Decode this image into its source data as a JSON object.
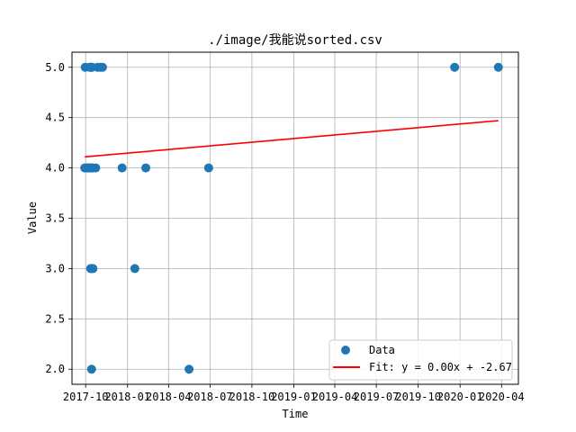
{
  "chart_data": {
    "type": "scatter",
    "title": "./image/我能说sorted.csv",
    "xlabel": "Time",
    "ylabel": "Value",
    "x_is_date": true,
    "xlim": [
      "2017-09-01",
      "2020-05-08"
    ],
    "ylim": [
      1.85,
      5.15
    ],
    "grid": true,
    "legend_position": "lower-right",
    "x_ticks": [
      {
        "date": "2017-10-01",
        "label": "2017-10"
      },
      {
        "date": "2018-01-01",
        "label": "2018-01"
      },
      {
        "date": "2018-04-01",
        "label": "2018-04"
      },
      {
        "date": "2018-07-01",
        "label": "2018-07"
      },
      {
        "date": "2018-10-01",
        "label": "2018-10"
      },
      {
        "date": "2019-01-01",
        "label": "2019-01"
      },
      {
        "date": "2019-04-01",
        "label": "2019-04"
      },
      {
        "date": "2019-07-01",
        "label": "2019-07"
      },
      {
        "date": "2019-10-01",
        "label": "2019-10"
      },
      {
        "date": "2020-01-01",
        "label": "2020-01"
      },
      {
        "date": "2020-04-01",
        "label": "2020-04"
      }
    ],
    "y_ticks": [
      {
        "value": 2.0,
        "label": "2.0"
      },
      {
        "value": 2.5,
        "label": "2.5"
      },
      {
        "value": 3.0,
        "label": "3.0"
      },
      {
        "value": 3.5,
        "label": "3.5"
      },
      {
        "value": 4.0,
        "label": "4.0"
      },
      {
        "value": 4.5,
        "label": "4.5"
      },
      {
        "value": 5.0,
        "label": "5.0"
      }
    ],
    "series": [
      {
        "name": "Data",
        "kind": "scatter",
        "color": "#1f77b4",
        "points": [
          {
            "x": "2017-09-30",
            "y": 5.0
          },
          {
            "x": "2017-10-10",
            "y": 5.0
          },
          {
            "x": "2017-10-12",
            "y": 5.0
          },
          {
            "x": "2017-10-13",
            "y": 5.0
          },
          {
            "x": "2017-10-15",
            "y": 5.0
          },
          {
            "x": "2017-10-27",
            "y": 5.0
          },
          {
            "x": "2017-11-02",
            "y": 5.0
          },
          {
            "x": "2017-11-07",
            "y": 5.0
          },
          {
            "x": "2017-09-29",
            "y": 4.0
          },
          {
            "x": "2017-10-03",
            "y": 4.0
          },
          {
            "x": "2017-10-05",
            "y": 4.0
          },
          {
            "x": "2017-10-07",
            "y": 4.0
          },
          {
            "x": "2017-10-09",
            "y": 4.0
          },
          {
            "x": "2017-10-11",
            "y": 4.0
          },
          {
            "x": "2017-10-13",
            "y": 4.0
          },
          {
            "x": "2017-10-15",
            "y": 4.0
          },
          {
            "x": "2017-10-17",
            "y": 4.0
          },
          {
            "x": "2017-10-23",
            "y": 4.0
          },
          {
            "x": "2017-12-20",
            "y": 4.0
          },
          {
            "x": "2018-02-10",
            "y": 4.0
          },
          {
            "x": "2018-06-28",
            "y": 4.0
          },
          {
            "x": "2017-10-12",
            "y": 3.0
          },
          {
            "x": "2017-10-14",
            "y": 3.0
          },
          {
            "x": "2017-10-17",
            "y": 3.0
          },
          {
            "x": "2018-01-17",
            "y": 3.0
          },
          {
            "x": "2017-10-14",
            "y": 2.0
          },
          {
            "x": "2018-05-16",
            "y": 2.0
          },
          {
            "x": "2019-12-20",
            "y": 5.0
          },
          {
            "x": "2020-03-25",
            "y": 5.0
          }
        ]
      },
      {
        "name": "Fit: y = 0.00x + -2.67",
        "kind": "line",
        "color": "#ff0000",
        "points": [
          {
            "x": "2017-09-29",
            "y": 4.11
          },
          {
            "x": "2020-03-25",
            "y": 4.47
          }
        ]
      }
    ]
  }
}
